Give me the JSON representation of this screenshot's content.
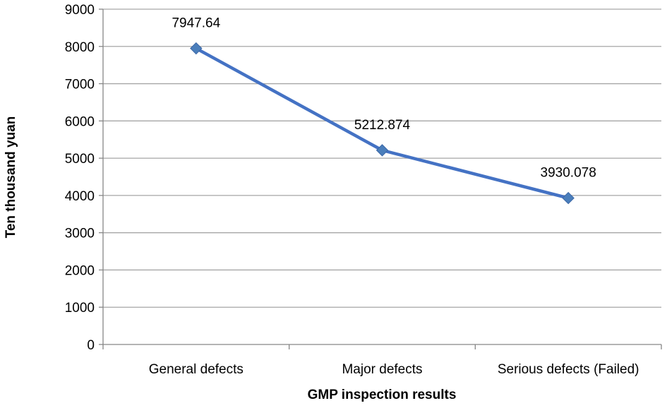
{
  "chart_data": {
    "type": "line",
    "categories": [
      "General defects",
      "Major defects",
      "Serious defects (Failed)"
    ],
    "series": [
      {
        "values": [
          7947.64,
          5212.874,
          3930.078
        ]
      }
    ],
    "data_labels": [
      "7947.64",
      "5212.874",
      "3930.078"
    ],
    "title": "",
    "xlabel": "GMP inspection results",
    "ylabel": "Ten thousand yuan",
    "ylim": [
      0,
      9000
    ],
    "yticks": [
      0,
      1000,
      2000,
      3000,
      4000,
      5000,
      6000,
      7000,
      8000,
      9000
    ],
    "grid": true,
    "legend": "none",
    "colors": {
      "line": "#4472c4",
      "marker": "#4a7ebb",
      "grid": "#a6a6a6"
    }
  }
}
